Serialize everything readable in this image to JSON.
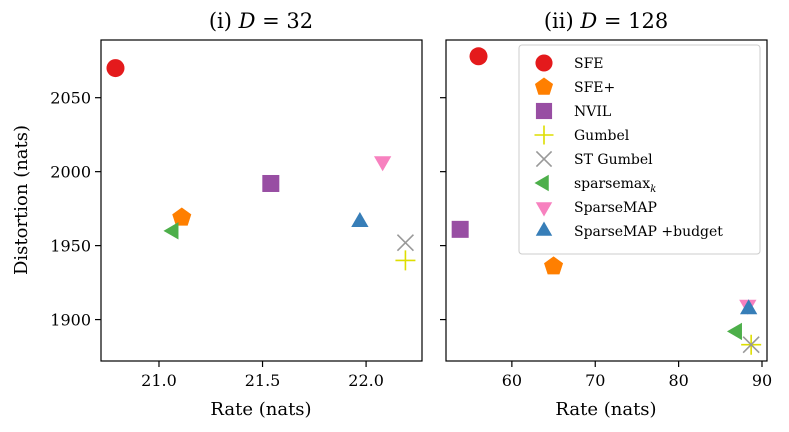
{
  "methods": [
    {
      "key": "sfe",
      "label": "SFE",
      "marker": "circle",
      "color": "#e41a1c"
    },
    {
      "key": "sfe_plus",
      "label": "SFE+",
      "marker": "pentagon",
      "color": "#ff7f00"
    },
    {
      "key": "nvil",
      "label": "NVIL",
      "marker": "square",
      "color": "#984ea3"
    },
    {
      "key": "gumbel",
      "label": "Gumbel",
      "marker": "plus",
      "color": "#dede00"
    },
    {
      "key": "st_gumbel",
      "label": "ST Gumbel",
      "marker": "x",
      "color": "#999999"
    },
    {
      "key": "sparsemax_k",
      "label": "sparsemax",
      "label_sub": "k",
      "marker": "triangle-left",
      "color": "#4daf4a"
    },
    {
      "key": "sparsemap",
      "label": "SparseMAP",
      "marker": "triangle-down",
      "color": "#f781bf"
    },
    {
      "key": "sparsemap_budget",
      "label": "SparseMAP +budget",
      "marker": "triangle-up",
      "color": "#377eb8"
    }
  ],
  "chart_data": [
    {
      "type": "scatter",
      "title_prefix": "(i) ",
      "title_var": "D",
      "title_suffix": " = 32",
      "xlabel": "Rate (nats)",
      "ylabel": "Distortion (nats)",
      "xlim": [
        20.72,
        22.27
      ],
      "ylim": [
        1872,
        2089
      ],
      "xticks": [
        21.0,
        21.5,
        22.0
      ],
      "xtick_labels": [
        "21.0",
        "21.5",
        "22.0"
      ],
      "yticks": [
        1900,
        1950,
        2000,
        2050
      ],
      "ytick_labels": [
        "1900",
        "1950",
        "2000",
        "2050"
      ],
      "show_ytick_labels": true,
      "legend": false,
      "points": [
        {
          "method": "sfe",
          "x": 20.79,
          "y": 2070
        },
        {
          "method": "sfe_plus",
          "x": 21.11,
          "y": 1969
        },
        {
          "method": "nvil",
          "x": 21.54,
          "y": 1992
        },
        {
          "method": "gumbel",
          "x": 22.19,
          "y": 1940
        },
        {
          "method": "st_gumbel",
          "x": 22.19,
          "y": 1952
        },
        {
          "method": "sparsemax_k",
          "x": 21.07,
          "y": 1960
        },
        {
          "method": "sparsemap",
          "x": 22.08,
          "y": 2007
        },
        {
          "method": "sparsemap_budget",
          "x": 21.97,
          "y": 1966
        }
      ]
    },
    {
      "type": "scatter",
      "title_prefix": "(ii) ",
      "title_var": "D",
      "title_suffix": " = 128",
      "xlabel": "Rate (nats)",
      "ylabel": "",
      "xlim": [
        52.1,
        90.6
      ],
      "ylim": [
        1872,
        2089
      ],
      "xticks": [
        60,
        70,
        80,
        90
      ],
      "xtick_labels": [
        "60",
        "70",
        "80",
        "90"
      ],
      "yticks": [
        1900,
        1950,
        2000,
        2050
      ],
      "ytick_labels": [
        "1900",
        "1950",
        "2000",
        "2050"
      ],
      "show_ytick_labels": false,
      "legend": true,
      "legend_loc": "upper right",
      "points": [
        {
          "method": "sfe",
          "x": 56.0,
          "y": 2078
        },
        {
          "method": "sfe_plus",
          "x": 65.0,
          "y": 1936
        },
        {
          "method": "nvil",
          "x": 53.8,
          "y": 1961
        },
        {
          "method": "gumbel",
          "x": 88.7,
          "y": 1883
        },
        {
          "method": "st_gumbel",
          "x": 88.7,
          "y": 1883
        },
        {
          "method": "sparsemax_k",
          "x": 87.0,
          "y": 1892
        },
        {
          "method": "sparsemap",
          "x": 88.3,
          "y": 1910
        },
        {
          "method": "sparsemap_budget",
          "x": 88.4,
          "y": 1907
        }
      ]
    }
  ]
}
